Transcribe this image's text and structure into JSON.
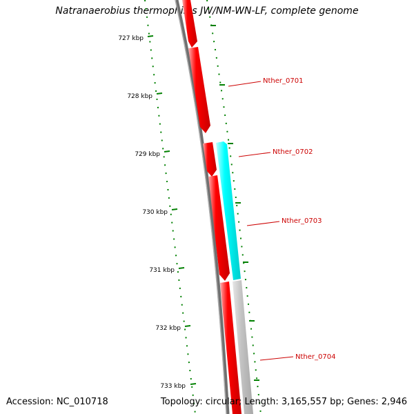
{
  "title": "Natranaerobius thermophilus JW/NM-WN-LF, complete genome",
  "footer": {
    "accession": "Accession: NC_010718",
    "summary": "Topology: circular; Length: 3,165,557 bp; Genes: 2,946"
  },
  "colors": {
    "forward_gene": "#ff0000",
    "reverse_gene": "#00ffff",
    "other_feature": "#c0c0c0",
    "backbone": "#808080",
    "tick": "#008000",
    "label": "#cc0000"
  },
  "tick_labels": [
    "727 kbp",
    "728 kbp",
    "729 kbp",
    "730 kbp",
    "731 kbp",
    "732 kbp",
    "733 kbp"
  ],
  "genes": [
    {
      "name": "Nther_0701"
    },
    {
      "name": "Nther_0702"
    },
    {
      "name": "Nther_0703"
    },
    {
      "name": "Nther_0704"
    }
  ]
}
